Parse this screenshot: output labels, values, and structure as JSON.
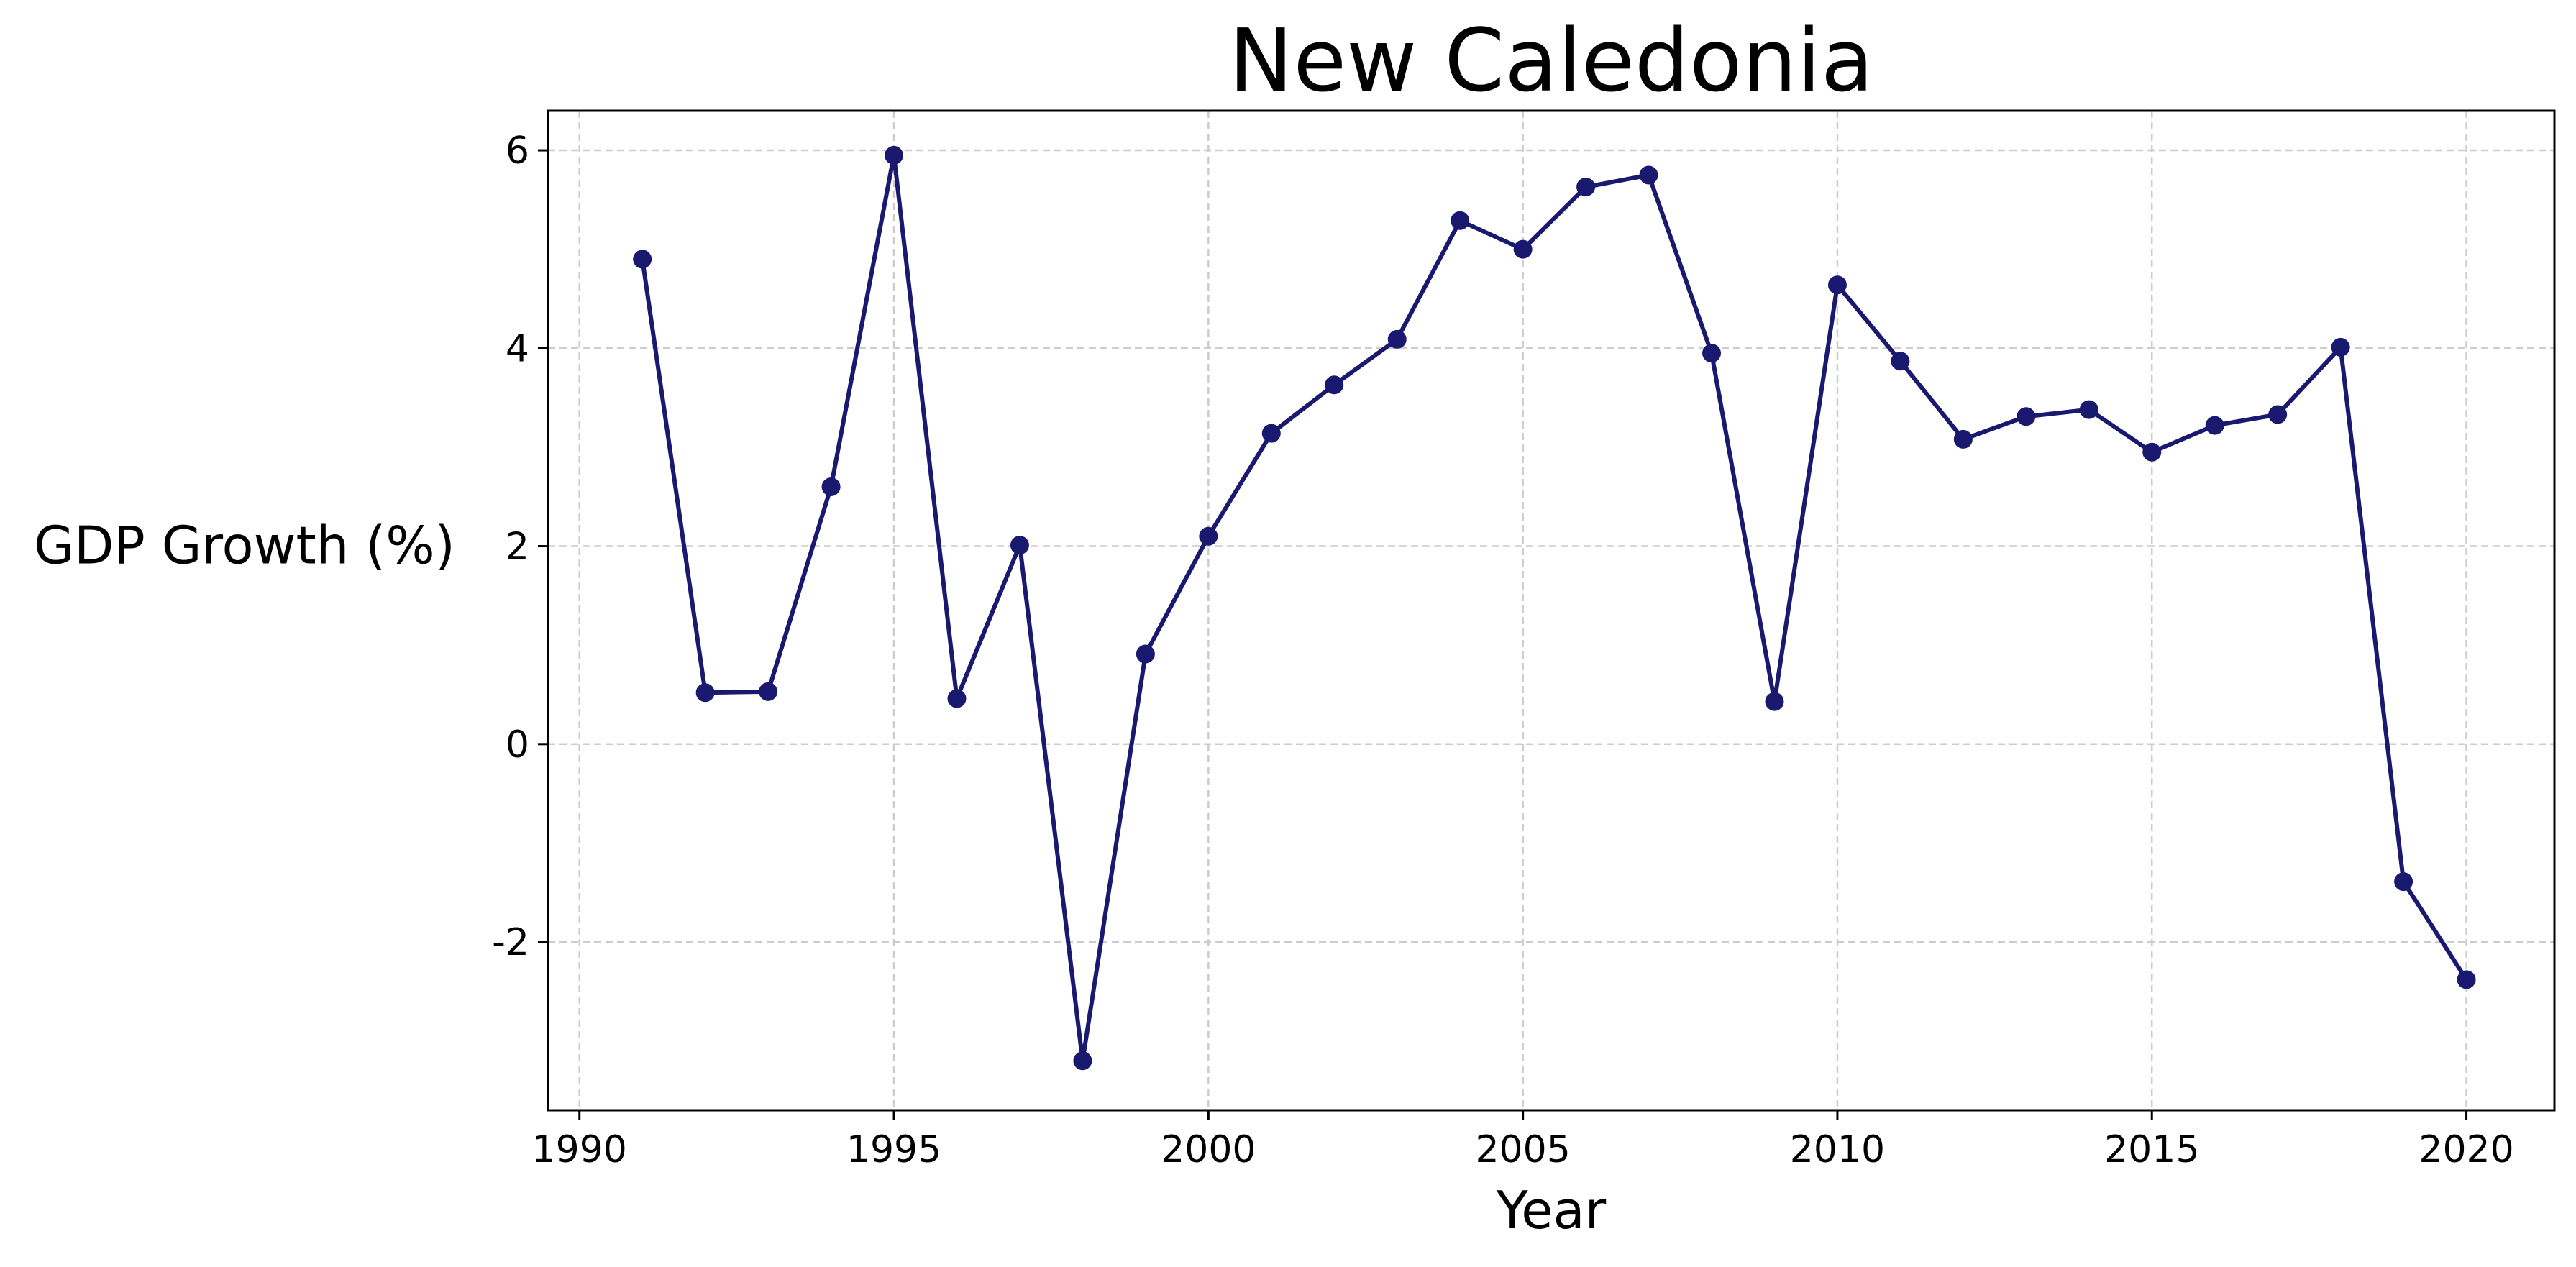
{
  "chart_data": {
    "type": "line",
    "title": "New Caledonia",
    "xlabel": "Year",
    "ylabel": "GDP Growth (%)",
    "xlim": [
      1989.5,
      2021.4
    ],
    "ylim": [
      -3.7,
      6.4
    ],
    "x_ticks": [
      1990,
      1995,
      2000,
      2005,
      2010,
      2015,
      2020
    ],
    "y_ticks": [
      -2,
      0,
      2,
      4,
      6
    ],
    "x_tick_labels": [
      "1990",
      "1995",
      "2000",
      "2005",
      "2010",
      "2015",
      "2020"
    ],
    "y_tick_labels": [
      "-2",
      "0",
      "2",
      "4",
      "6"
    ],
    "grid": true,
    "line_color": "#191970",
    "grid_color": "#cccccc",
    "series": [
      {
        "x": [
          1991,
          1992,
          1993,
          1994,
          1995,
          1996,
          1997,
          1998,
          1999,
          2000,
          2001,
          2002,
          2003,
          2004,
          2005,
          2006,
          2007,
          2008,
          2009,
          2010,
          2011,
          2012,
          2013,
          2014,
          2015,
          2016,
          2017,
          2018,
          2019,
          2020
        ],
        "values": [
          4.9,
          0.52,
          0.53,
          2.6,
          5.95,
          0.46,
          2.01,
          -3.2,
          0.91,
          2.1,
          3.14,
          3.63,
          4.09,
          5.29,
          5.0,
          5.63,
          5.75,
          3.95,
          0.43,
          4.64,
          3.87,
          3.08,
          3.31,
          3.38,
          2.95,
          3.22,
          3.33,
          4.01,
          -1.39,
          -2.38
        ]
      }
    ]
  }
}
